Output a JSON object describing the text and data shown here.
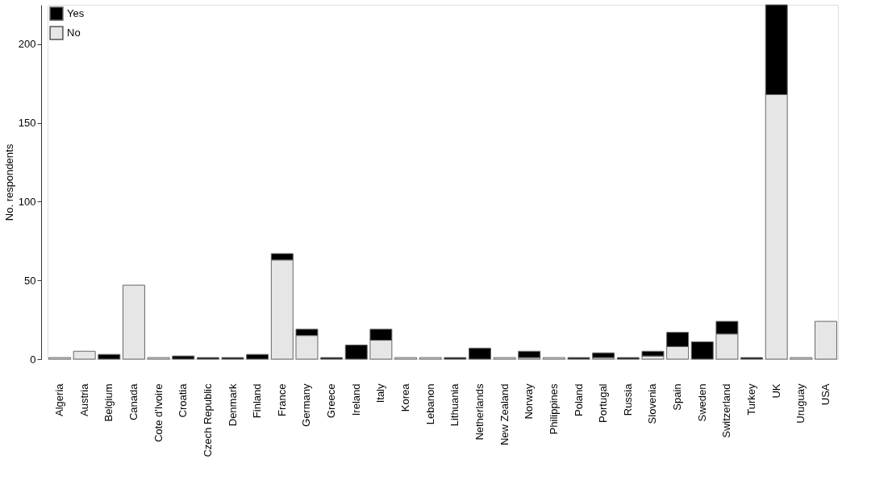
{
  "chart_data": {
    "type": "bar",
    "stacked": true,
    "ylabel": "No. respondents",
    "categories": [
      "Algeria",
      "Austria",
      "Belgium",
      "Canada",
      "Cote d'Ivoire",
      "Croatia",
      "Czech Republic",
      "Denmark",
      "Finland",
      "France",
      "Germany",
      "Greece",
      "Ireland",
      "Italy",
      "Korea",
      "Lebanon",
      "Lithuania",
      "Netherlands",
      "New Zealand",
      "Norway",
      "Philippines",
      "Poland",
      "Portugal",
      "Russia",
      "Slovenia",
      "Spain",
      "Sweden",
      "Switzerland",
      "Turkey",
      "UK",
      "Uruguay",
      "USA"
    ],
    "series": [
      {
        "name": "No",
        "color": "#e6e6e6",
        "values": [
          1,
          5,
          0,
          47,
          1,
          0,
          0,
          0,
          0,
          63,
          15,
          0,
          0,
          12,
          1,
          1,
          0,
          0,
          1,
          1,
          1,
          0,
          1,
          0,
          2,
          8,
          0,
          16,
          0,
          168,
          1,
          24
        ]
      },
      {
        "name": "Yes",
        "color": "#000000",
        "values": [
          0,
          0,
          3,
          0,
          0,
          2,
          1,
          1,
          3,
          4,
          4,
          1,
          9,
          7,
          0,
          0,
          1,
          7,
          0,
          4,
          0,
          1,
          3,
          1,
          3,
          9,
          11,
          8,
          1,
          57,
          0,
          0
        ]
      }
    ],
    "ylim": [
      0,
      225
    ],
    "yticks": [
      0,
      50,
      100,
      150,
      200
    ],
    "grid": false,
    "legend": "top left"
  }
}
